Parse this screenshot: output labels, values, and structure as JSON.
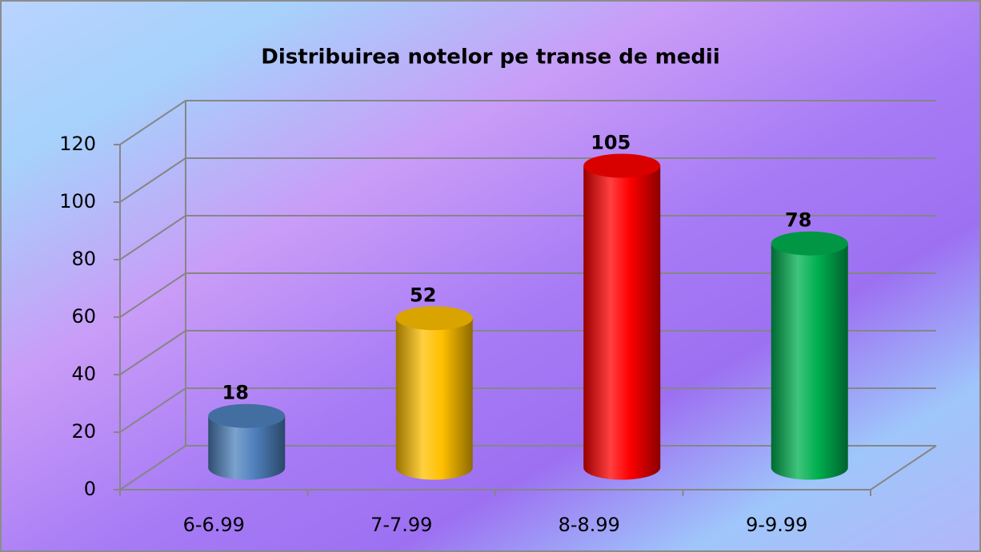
{
  "chart_data": {
    "type": "bar3d",
    "title": "Distribuirea notelor pe transe de medii",
    "categories": [
      "6-6.99",
      "7-7.99",
      "8-8.99",
      "9-9.99"
    ],
    "values": [
      18,
      52,
      105,
      78
    ],
    "colors": [
      "#4f81bd",
      "#ffc000",
      "#ff0000",
      "#00b050"
    ],
    "ylim": [
      0,
      120
    ],
    "yticks": [
      0,
      20,
      40,
      60,
      80,
      100,
      120
    ],
    "grid": true,
    "data_labels": true
  }
}
